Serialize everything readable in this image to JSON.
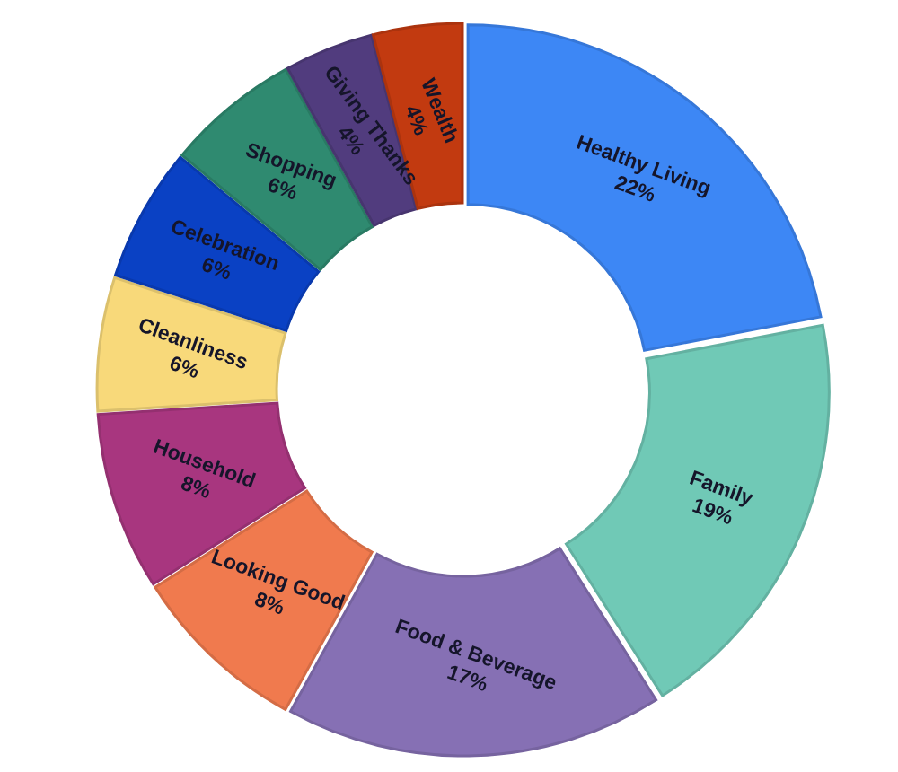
{
  "chart_data": {
    "type": "donut",
    "categories": [
      "Healthy Living",
      "Family",
      "Food & Beverage",
      "Looking Good",
      "Household",
      "Cleanliness",
      "Celebration",
      "Shopping",
      "Giving Thanks",
      "Wealth"
    ],
    "values": [
      22,
      19,
      17,
      8,
      8,
      6,
      6,
      6,
      4,
      4
    ],
    "value_labels": [
      "22%",
      "19%",
      "17%",
      "8%",
      "8%",
      "6%",
      "6%",
      "6%",
      "4%",
      "4%"
    ],
    "colors": [
      "#3d87f5",
      "#70c9b6",
      "#8670b4",
      "#f07a4e",
      "#a8367f",
      "#f8d97a",
      "#0a41c4",
      "#2f8a70",
      "#513c7e",
      "#c23a10"
    ]
  }
}
